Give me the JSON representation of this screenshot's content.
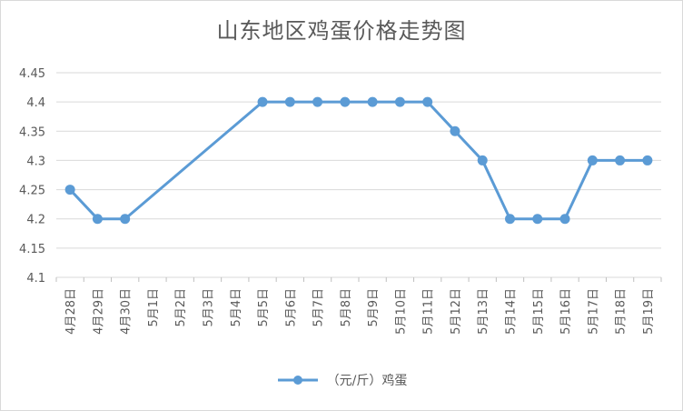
{
  "chart_data": {
    "type": "line",
    "title": "山东地区鸡蛋价格走势图",
    "categories": [
      "4月28日",
      "4月29日",
      "4月30日",
      "5月1日",
      "5月2日",
      "5月3日",
      "5月4日",
      "5月5日",
      "5月6日",
      "5月7日",
      "5月8日",
      "5月9日",
      "5月10日",
      "5月11日",
      "5月12日",
      "5月13日",
      "5月14日",
      "5月15日",
      "5月16日",
      "5月17日",
      "5月18日",
      "5月19日"
    ],
    "series": [
      {
        "name": "（元/斤）鸡蛋",
        "color": "#5b9bd5",
        "values": [
          4.25,
          4.2,
          4.2,
          null,
          null,
          null,
          null,
          4.4,
          4.4,
          4.4,
          4.4,
          4.4,
          4.4,
          4.4,
          4.35,
          4.3,
          4.2,
          4.2,
          4.2,
          4.3,
          4.3,
          4.3
        ]
      }
    ],
    "yticks": [
      "4.1",
      "4.15",
      "4.2",
      "4.25",
      "4.3",
      "4.35",
      "4.4",
      "4.45"
    ],
    "ylim": [
      4.1,
      4.45
    ],
    "grid": true,
    "legend": "bottom"
  }
}
